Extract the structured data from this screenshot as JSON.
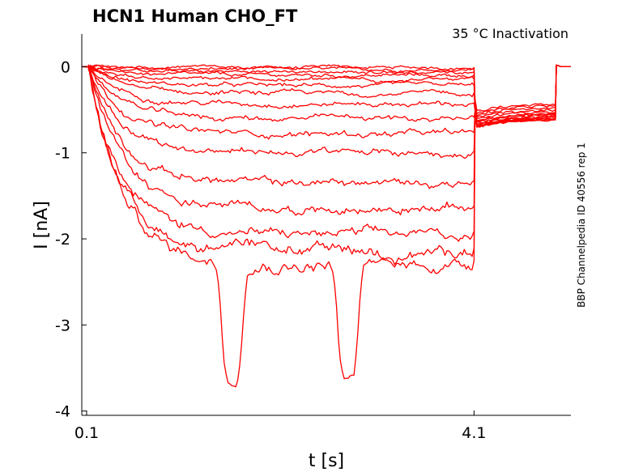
{
  "chart_data": {
    "type": "line",
    "title": "HCN1  Human  CHO_FT",
    "subtitle": "35 °C  Inactivation",
    "side_label": "BBP Channelpedia ID 40556 rep 1",
    "xlabel": "t [s]",
    "ylabel": "I [nA]",
    "xlim": [
      0.05,
      5.1
    ],
    "ylim": [
      -4.05,
      0.38
    ],
    "x_ticks": [
      {
        "value": 0.1,
        "label": "0.1"
      },
      {
        "value": 4.1,
        "label": "4.1"
      }
    ],
    "y_ticks": [
      {
        "value": 0,
        "label": "0"
      },
      {
        "value": -1,
        "label": "-1"
      },
      {
        "value": -2,
        "label": "-2"
      },
      {
        "value": -3,
        "label": "-3"
      },
      {
        "value": -4,
        "label": "-4"
      }
    ],
    "grid": false,
    "line_color": "#ff0000",
    "series": [
      {
        "steady": -0.01,
        "tail": -0.43
      },
      {
        "steady": -0.03,
        "tail": -0.45
      },
      {
        "steady": -0.06,
        "tail": -0.47
      },
      {
        "steady": -0.1,
        "tail": -0.5
      },
      {
        "steady": -0.15,
        "tail": -0.52
      },
      {
        "steady": -0.22,
        "tail": -0.54
      },
      {
        "steady": -0.31,
        "tail": -0.55
      },
      {
        "steady": -0.43,
        "tail": -0.56
      },
      {
        "steady": -0.6,
        "tail": -0.57
      },
      {
        "steady": -0.78,
        "tail": -0.58
      },
      {
        "steady": -1.0,
        "tail": -0.59
      },
      {
        "steady": -1.35,
        "tail": -0.6
      },
      {
        "steady": -1.65,
        "tail": -0.6
      },
      {
        "steady": -1.95,
        "tail": -0.6
      },
      {
        "steady": -2.15,
        "tail": -0.61
      },
      {
        "steady": -2.3,
        "tail": -0.61,
        "dips": [
          {
            "t": 1.6,
            "min": -3.62
          },
          {
            "t": 2.8,
            "min": -3.65
          }
        ]
      }
    ],
    "protocol_times": {
      "step_on": 0.12,
      "step_off": 4.1,
      "tail_end": 4.95
    }
  }
}
